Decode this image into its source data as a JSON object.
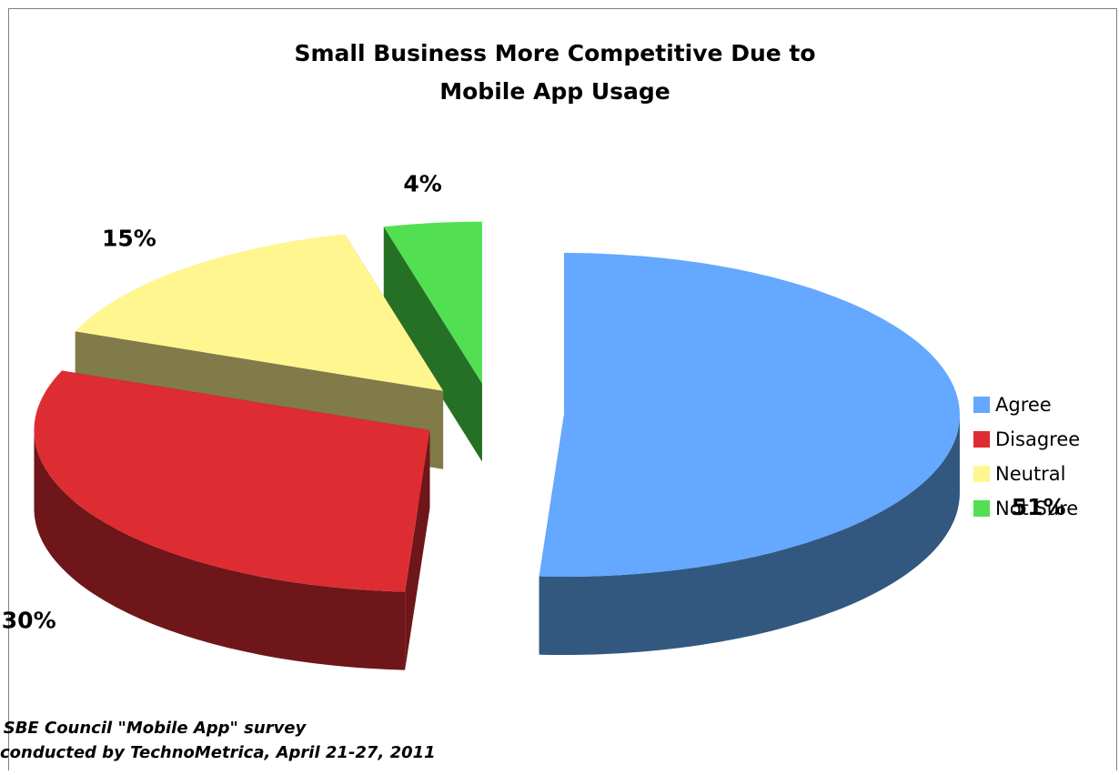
{
  "chart_data": {
    "type": "pie",
    "title_lines": [
      "Small Business More Competitive Due to",
      "Mobile App Usage"
    ],
    "slices": [
      {
        "name": "Agree",
        "value": 51,
        "label": "51%",
        "color": "#64A8FF",
        "side_color": "#33587F"
      },
      {
        "name": "Disagree",
        "value": 30,
        "label": "30%",
        "color": "#DE2C33",
        "side_color": "#6E1619"
      },
      {
        "name": "Neutral",
        "value": 15,
        "label": "15%",
        "color": "#FFF690",
        "side_color": "#807B48"
      },
      {
        "name": "Not Sure",
        "value": 4,
        "label": "4%",
        "color": "#52E052",
        "side_color": "#267026"
      }
    ],
    "legend_position": "right",
    "annotation_lines": [
      "SBE Council \"Mobile App\" survey",
      "conducted by TechnoMetrica, April 21-27, 2011"
    ]
  }
}
